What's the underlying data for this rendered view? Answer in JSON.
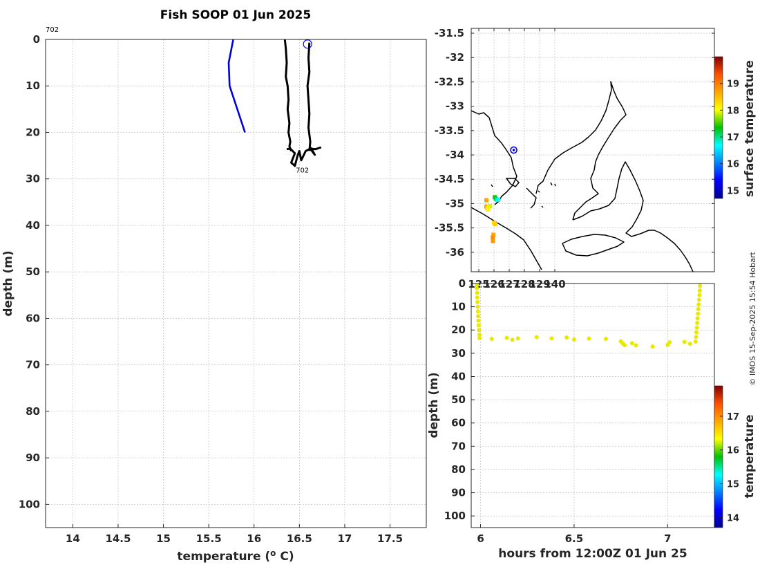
{
  "title": "Fish SOOP 01 Jun 2025",
  "credit": "© IMOS 15-Sep-2025 15:54 Hobart",
  "colors": {
    "profile_blue": "#0000dd",
    "profile_black": "#000000",
    "scatter_yellow": "#e8e800",
    "frame": "#262626"
  },
  "chart_data": [
    {
      "type": "line",
      "name": "profile",
      "xlabel": "temperature (° C)",
      "ylabel": "depth (m)",
      "xlim": [
        13.7,
        17.9
      ],
      "ylim": [
        105,
        0
      ],
      "xticks": [
        "14",
        "14.5",
        "15",
        "15.5",
        "16",
        "16.5",
        "17",
        "17.5"
      ],
      "yticks": [
        "0",
        "10",
        "20",
        "30",
        "40",
        "50",
        "60",
        "70",
        "80",
        "90",
        "100"
      ],
      "top_label": "702",
      "end_label": "702",
      "series": [
        {
          "name": "climatology",
          "color": "blue",
          "x": [
            15.77,
            15.72,
            15.73,
            15.9
          ],
          "y": [
            0,
            5,
            10,
            20
          ]
        },
        {
          "name": "down-cast",
          "color": "black",
          "x": [
            16.34,
            16.35,
            16.36,
            16.35,
            16.37,
            16.38,
            16.37,
            16.39,
            16.38,
            16.4,
            16.39,
            16.41
          ],
          "y": [
            0,
            2,
            5,
            8,
            10,
            13,
            15,
            18,
            20,
            22,
            23,
            24
          ]
        },
        {
          "name": "up-cast",
          "color": "black",
          "x": [
            16.61,
            16.6,
            16.61,
            16.59,
            16.6,
            16.61,
            16.6,
            16.62,
            16.61
          ],
          "y": [
            0.7,
            4,
            7,
            10,
            13,
            16,
            19,
            22,
            24
          ]
        },
        {
          "name": "bottom",
          "color": "black",
          "x": [
            16.36,
            16.4,
            16.45,
            16.41,
            16.45,
            16.48,
            16.5,
            16.52,
            16.57,
            16.63,
            16.67,
            16.62,
            16.68,
            16.74
          ],
          "y": [
            23.6,
            23.5,
            24.5,
            26.5,
            27.2,
            25,
            24,
            26,
            24,
            23.4,
            24.8,
            23.5,
            23.6,
            23.2
          ]
        }
      ],
      "marker": {
        "x": 16.59,
        "y": 1
      }
    },
    {
      "type": "scatter",
      "name": "map",
      "xlim": [
        124.5,
        140.5
      ],
      "ylim": [
        -36.4,
        -31.4
      ],
      "xticks": [
        "125",
        "126",
        "127",
        "128",
        "129",
        "140"
      ],
      "yticks": [
        "-31.5",
        "-32",
        "-32.5",
        "-33",
        "-33.5",
        "-34",
        "-34.5",
        "-35",
        "-35.5",
        "-36"
      ],
      "colorbar_label": "surface temperature",
      "colorbar_range": [
        14.7,
        20.0
      ],
      "colorbar_ticks": [
        "15",
        "16",
        "17",
        "18",
        "19"
      ],
      "position_marker": {
        "lon": 127.3,
        "lat": -33.9
      },
      "points": [
        {
          "lon": 125.5,
          "lat": -34.93,
          "value": 18.7
        },
        {
          "lon": 125.5,
          "lat": -35.06,
          "value": 18.8
        },
        {
          "lon": 125.56,
          "lat": -35.09,
          "value": 18.4
        },
        {
          "lon": 125.62,
          "lat": -35.08,
          "value": 18.2
        },
        {
          "lon": 125.68,
          "lat": -35.06,
          "value": 18.0
        },
        {
          "lon": 125.74,
          "lat": -35.05,
          "value": 17.9
        },
        {
          "lon": 125.6,
          "lat": -35.12,
          "value": 18.1
        },
        {
          "lon": 126.05,
          "lat": -34.87,
          "value": 17.4
        },
        {
          "lon": 126.12,
          "lat": -34.9,
          "value": 17.2
        },
        {
          "lon": 126.2,
          "lat": -34.92,
          "value": 16.9
        },
        {
          "lon": 126.28,
          "lat": -34.92,
          "value": 16.7
        },
        {
          "lon": 126.0,
          "lat": -35.39,
          "value": 18.3
        },
        {
          "lon": 126.08,
          "lat": -35.42,
          "value": 18.4
        },
        {
          "lon": 125.96,
          "lat": -35.64,
          "value": 18.7
        },
        {
          "lon": 125.92,
          "lat": -35.7,
          "value": 18.9
        },
        {
          "lon": 125.93,
          "lat": -35.77,
          "value": 18.8
        }
      ]
    },
    {
      "type": "scatter",
      "name": "section",
      "xlabel": "hours from 12:00Z 01 Jun 25",
      "ylabel": "depth (m)",
      "xlim": [
        5.95,
        7.25
      ],
      "ylim": [
        105,
        0
      ],
      "xticks": [
        "6",
        "6.5",
        "7"
      ],
      "yticks": [
        "0",
        "10",
        "20",
        "30",
        "40",
        "50",
        "60",
        "70",
        "80",
        "90",
        "100"
      ],
      "colorbar_label": "temperature",
      "colorbar_range": [
        13.7,
        17.9
      ],
      "colorbar_ticks": [
        "14",
        "15",
        "16",
        "17"
      ],
      "points": [
        {
          "hours": 5.98,
          "depth": 0.7
        },
        {
          "hours": 5.98,
          "depth": 2
        },
        {
          "hours": 5.982,
          "depth": 4
        },
        {
          "hours": 5.982,
          "depth": 6
        },
        {
          "hours": 5.984,
          "depth": 8
        },
        {
          "hours": 5.985,
          "depth": 10
        },
        {
          "hours": 5.986,
          "depth": 12
        },
        {
          "hours": 5.987,
          "depth": 14
        },
        {
          "hours": 5.988,
          "depth": 16
        },
        {
          "hours": 5.99,
          "depth": 18
        },
        {
          "hours": 5.992,
          "depth": 20
        },
        {
          "hours": 5.994,
          "depth": 22
        },
        {
          "hours": 5.995,
          "depth": 23.5
        },
        {
          "hours": 6.06,
          "depth": 23.8
        },
        {
          "hours": 6.14,
          "depth": 23.4
        },
        {
          "hours": 6.17,
          "depth": 24.2
        },
        {
          "hours": 6.2,
          "depth": 23.6
        },
        {
          "hours": 6.3,
          "depth": 23.1
        },
        {
          "hours": 6.38,
          "depth": 23.6
        },
        {
          "hours": 6.46,
          "depth": 23.2
        },
        {
          "hours": 6.5,
          "depth": 24.1
        },
        {
          "hours": 6.58,
          "depth": 23.7
        },
        {
          "hours": 6.67,
          "depth": 23.8
        },
        {
          "hours": 6.75,
          "depth": 24.9
        },
        {
          "hours": 6.76,
          "depth": 25.8
        },
        {
          "hours": 6.77,
          "depth": 26.5
        },
        {
          "hours": 6.81,
          "depth": 25.7
        },
        {
          "hours": 6.83,
          "depth": 26.6
        },
        {
          "hours": 6.92,
          "depth": 27.1
        },
        {
          "hours": 7.0,
          "depth": 26.4
        },
        {
          "hours": 7.01,
          "depth": 25.3
        },
        {
          "hours": 7.09,
          "depth": 25.1
        },
        {
          "hours": 7.12,
          "depth": 25.9
        },
        {
          "hours": 7.15,
          "depth": 25
        },
        {
          "hours": 7.152,
          "depth": 23
        },
        {
          "hours": 7.154,
          "depth": 21
        },
        {
          "hours": 7.156,
          "depth": 19
        },
        {
          "hours": 7.158,
          "depth": 17
        },
        {
          "hours": 7.16,
          "depth": 15
        },
        {
          "hours": 7.162,
          "depth": 13
        },
        {
          "hours": 7.164,
          "depth": 11
        },
        {
          "hours": 7.166,
          "depth": 9
        },
        {
          "hours": 7.168,
          "depth": 7
        },
        {
          "hours": 7.17,
          "depth": 5
        },
        {
          "hours": 7.172,
          "depth": 3
        },
        {
          "hours": 7.173,
          "depth": 1
        }
      ]
    }
  ]
}
